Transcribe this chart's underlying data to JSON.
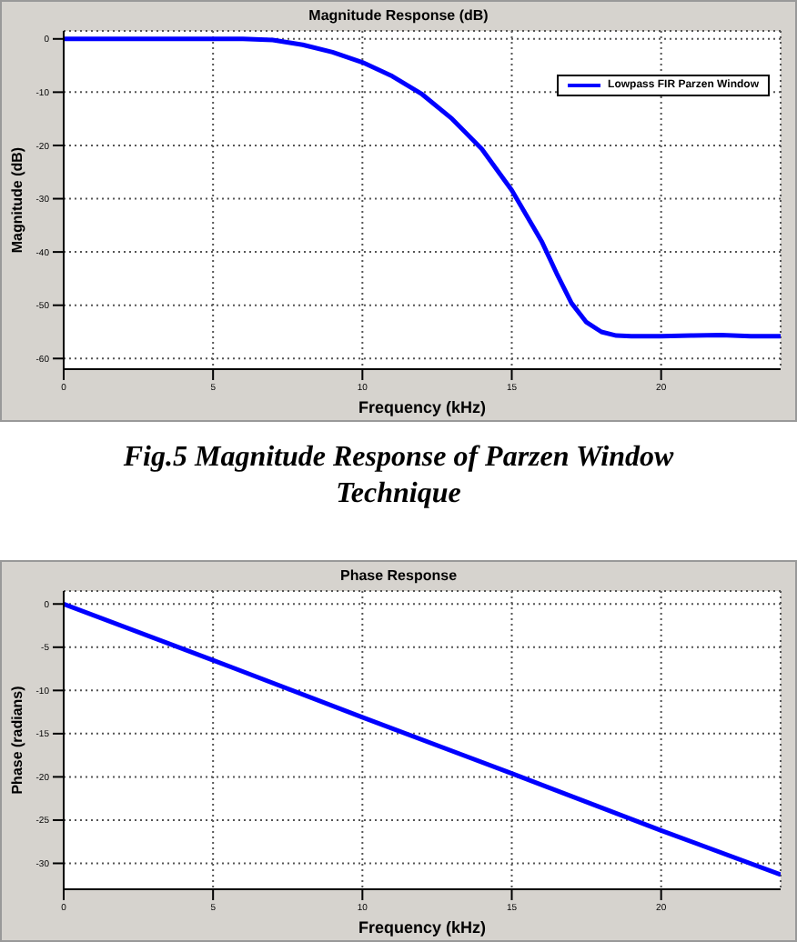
{
  "chart_data": [
    {
      "type": "line",
      "title": "Magnitude Response (dB)",
      "xlabel": "Frequency (kHz)",
      "ylabel": "Magnitude (dB)",
      "xlim": [
        0,
        24
      ],
      "xticks": [
        0,
        5,
        10,
        15,
        20
      ],
      "ylim": [
        -62,
        1.5
      ],
      "yticks": [
        -60,
        -50,
        -40,
        -30,
        -20,
        -10,
        0
      ],
      "grid": true,
      "legend": "top right",
      "annotations": [
        "Fig.5 Magnitude Response of Parzen Window Technique"
      ],
      "series": [
        {
          "name": "Lowpass FIR Parzen Window",
          "color": "#0000ff",
          "x": [
            0,
            6,
            7,
            8,
            9,
            10,
            11,
            12,
            13,
            14,
            15,
            16,
            16.5,
            17,
            17.5,
            18,
            18.5,
            19,
            20,
            21,
            22,
            23,
            24
          ],
          "values": [
            0,
            0,
            -0.2,
            -1.1,
            -2.5,
            -4.4,
            -7,
            -10.4,
            -15,
            -20.7,
            -28.4,
            -38,
            -44,
            -49.6,
            -53.2,
            -55,
            -55.7,
            -55.8,
            -55.8,
            -55.7,
            -55.6,
            -55.8,
            -55.8
          ]
        }
      ]
    },
    {
      "type": "line",
      "title": "Phase Response",
      "xlabel": "Frequency (kHz)",
      "ylabel": "Phase (radians)",
      "xlim": [
        0,
        24
      ],
      "xticks": [
        0,
        5,
        10,
        15,
        20
      ],
      "ylim": [
        -33,
        1.5
      ],
      "yticks": [
        -30,
        -25,
        -20,
        -15,
        -10,
        -5,
        0
      ],
      "grid": true,
      "series": [
        {
          "color": "#0000ff",
          "x": [
            0,
            5,
            10,
            15,
            20,
            24
          ],
          "values": [
            0,
            -6.5,
            -13.1,
            -19.6,
            -26.2,
            -31.3
          ]
        }
      ]
    }
  ]
}
